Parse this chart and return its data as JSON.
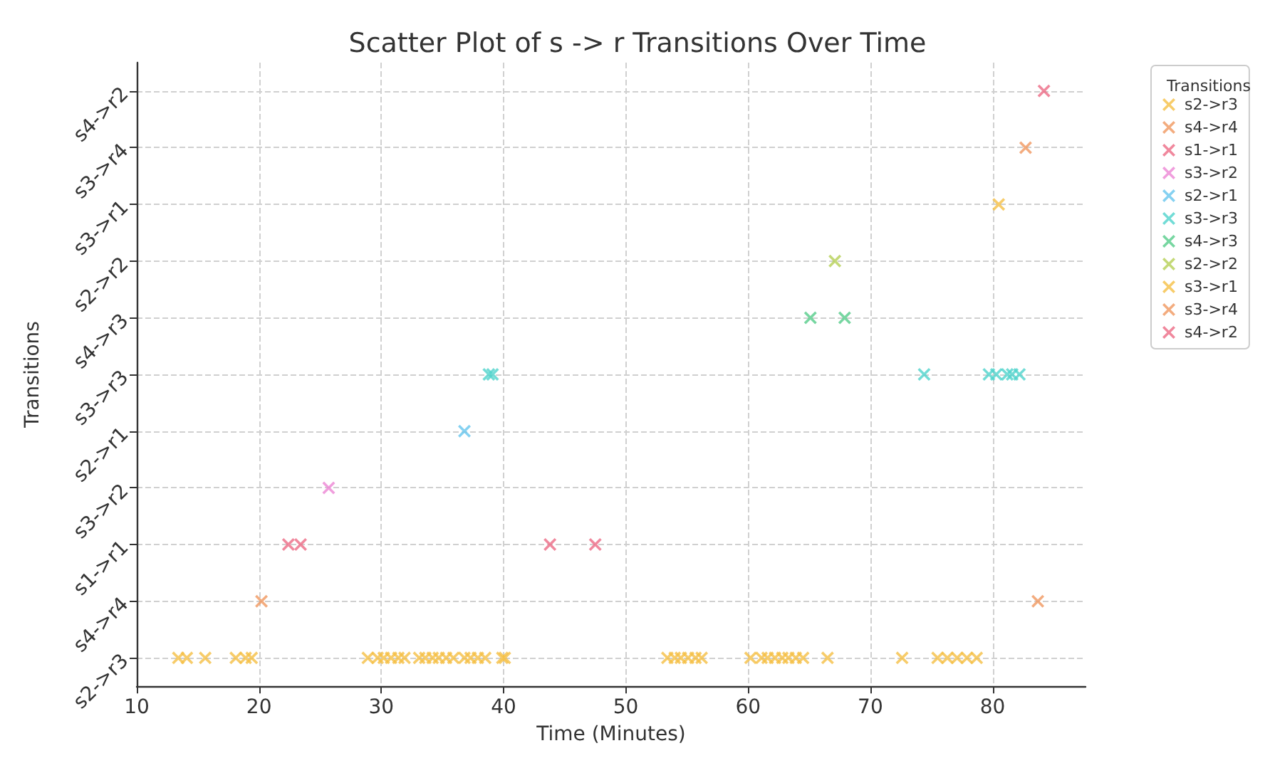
{
  "chart_data": {
    "type": "scatter",
    "orientation": "horizontal",
    "title": "Scatter Plot of s -> r Transitions Over Time",
    "xlabel": "Time (Minutes)",
    "ylabel": "Transitions",
    "legend_title": "Transitions",
    "categories": [
      "s4->r2",
      "s3->r4",
      "s3->r1",
      "s2->r2",
      "s4->r3",
      "s3->r3",
      "s2->r1",
      "s3->r2",
      "s1->r1",
      "s4->r4",
      "s2->r3"
    ],
    "xlim": [
      10,
      87.6
    ],
    "xticks": [
      10,
      20,
      30,
      40,
      50,
      60,
      70,
      80
    ],
    "grid": true,
    "legend": "top right",
    "marker": "cross",
    "series": [
      {
        "name": "s2->r3",
        "color": "#f5bf45",
        "x": [
          "s2->r3",
          "s2->r3",
          "s2->r3",
          "s2->r3",
          "s2->r3",
          "s2->r3",
          "s2->r3",
          "s2->r3",
          "s2->r3",
          "s2->r3",
          "s2->r3",
          "s2->r3",
          "s2->r3",
          "s2->r3",
          "s2->r3",
          "s2->r3",
          "s2->r3",
          "s2->r3",
          "s2->r3",
          "s2->r3",
          "s2->r3",
          "s2->r3",
          "s2->r3",
          "s2->r3",
          "s2->r3",
          "s2->r3",
          "s2->r3",
          "s2->r3",
          "s2->r3",
          "s2->r3",
          "s2->r3",
          "s2->r3",
          "s2->r3",
          "s2->r3",
          "s2->r3",
          "s2->r3",
          "s2->r3",
          "s2->r3",
          "s2->r3",
          "s2->r3",
          "s2->r3",
          "s2->r3",
          "s2->r3",
          "s2->r3",
          "s2->r3"
        ],
        "values": [
          13.4,
          14.1,
          15.6,
          18.1,
          18.9,
          19.4,
          28.9,
          29.7,
          30.2,
          30.8,
          31.4,
          31.9,
          33.1,
          33.6,
          34.2,
          34.7,
          35.3,
          35.9,
          36.8,
          37.3,
          37.9,
          38.5,
          39.9,
          40.1,
          53.4,
          54.0,
          54.5,
          55.1,
          55.7,
          56.2,
          60.2,
          61.1,
          61.6,
          62.2,
          62.8,
          63.3,
          63.9,
          64.5,
          66.5,
          72.6,
          75.5,
          76.3,
          77.1,
          77.9,
          78.7
        ]
      },
      {
        "name": "s4->r4",
        "color": "#f0975f",
        "x": [
          "s4->r4",
          "s4->r4"
        ],
        "values": [
          20.2,
          83.7
        ]
      },
      {
        "name": "s1->r1",
        "color": "#ec6a84",
        "x": [
          "s1->r1",
          "s1->r1",
          "s1->r1",
          "s1->r1"
        ],
        "values": [
          22.4,
          23.4,
          43.8,
          47.5
        ]
      },
      {
        "name": "s3->r2",
        "color": "#ec86d4",
        "x": [
          "s3->r2"
        ],
        "values": [
          25.7
        ]
      },
      {
        "name": "s2->r1",
        "color": "#66c6ee",
        "x": [
          "s2->r1"
        ],
        "values": [
          36.8
        ]
      },
      {
        "name": "s3->r3",
        "color": "#4fd3cc",
        "x": [
          "s3->r3",
          "s3->r3",
          "s3->r3",
          "s3->r3",
          "s3->r3",
          "s3->r3",
          "s3->r3",
          "s3->r3"
        ],
        "values": [
          38.8,
          39.1,
          74.4,
          79.7,
          80.3,
          81.2,
          81.6,
          82.2
        ]
      },
      {
        "name": "s4->r3",
        "color": "#55cc8a",
        "x": [
          "s4->r3",
          "s4->r3"
        ],
        "values": [
          65.1,
          67.9
        ]
      },
      {
        "name": "s2->r2",
        "color": "#b5cf55",
        "x": [
          "s2->r2"
        ],
        "values": [
          67.1
        ]
      },
      {
        "name": "s3->r1",
        "color": "#f5bf45",
        "x": [
          "s3->r1"
        ],
        "values": [
          80.5
        ]
      },
      {
        "name": "s3->r4",
        "color": "#f0975f",
        "x": [
          "s3->r4"
        ],
        "values": [
          82.7
        ]
      },
      {
        "name": "s4->r2",
        "color": "#ec6a84",
        "x": [
          "s4->r2"
        ],
        "values": [
          84.2
        ]
      }
    ]
  }
}
